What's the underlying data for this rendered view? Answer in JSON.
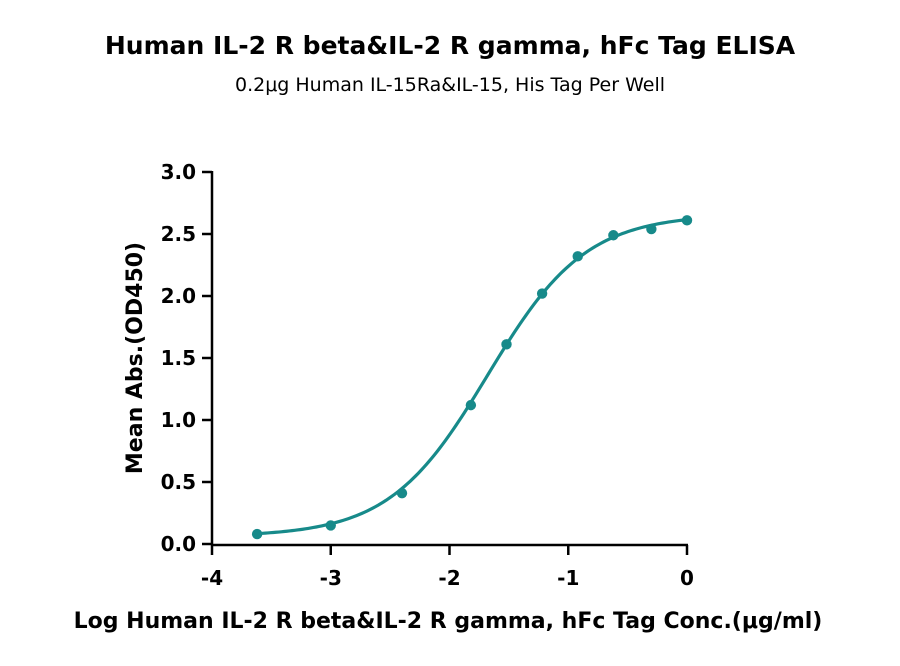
{
  "chart_data": {
    "type": "scatter",
    "title": "Human IL-2 R beta&IL-2 R gamma, hFc Tag ELISA",
    "subtitle": "0.2μg Human IL-15Ra&IL-15, His Tag Per Well",
    "xlabel": "Log Human IL-2 R beta&IL-2 R gamma, hFc Tag Conc.(μg/ml)",
    "ylabel": "Mean Abs.(OD450)",
    "xlim": [
      -4,
      0
    ],
    "ylim": [
      0,
      3.0
    ],
    "x_ticks": [
      -4,
      -3,
      -2,
      -1,
      0
    ],
    "x_tick_labels": [
      "-4",
      "-3",
      "-2",
      "-1",
      "0"
    ],
    "y_ticks": [
      0,
      0.5,
      1.0,
      1.5,
      2.0,
      2.5,
      3.0
    ],
    "y_tick_labels": [
      "0.0",
      "0.5",
      "1.0",
      "1.5",
      "2.0",
      "2.5",
      "3.0"
    ],
    "grid": false,
    "color": "#178a8a",
    "series": [
      {
        "x": [
          -3.62,
          -3.0,
          -2.4,
          -1.82,
          -1.52,
          -1.22,
          -0.92,
          -0.62,
          -0.3,
          0.0
        ],
        "y": [
          0.08,
          0.15,
          0.41,
          1.12,
          1.61,
          2.02,
          2.32,
          2.49,
          2.54,
          2.61
        ],
        "fit": {
          "model": "4PL",
          "bottom": 0.06,
          "top": 2.66,
          "logEC50": -1.68,
          "hillslope": 1.05
        }
      }
    ]
  }
}
